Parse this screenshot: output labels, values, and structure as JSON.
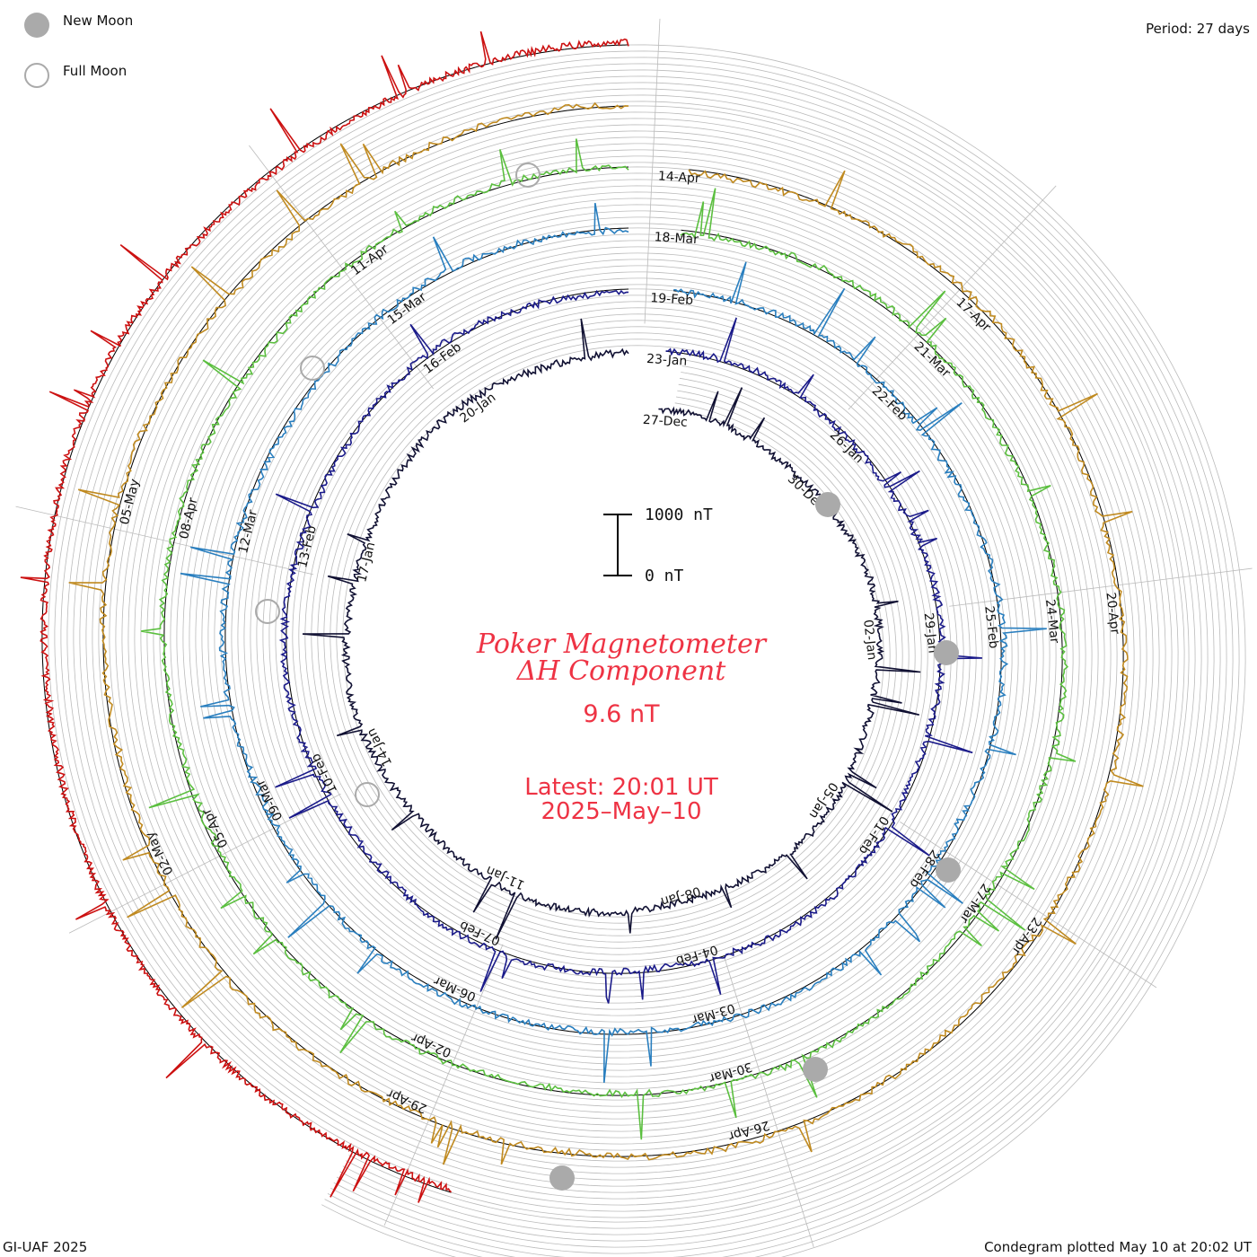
{
  "legend": {
    "new_moon": "New Moon",
    "full_moon": "Full Moon"
  },
  "period": "Period: 27 days",
  "footer": {
    "left": "GI-UAF 2025",
    "right": "Condegram plotted May 10 at 20:02 UT"
  },
  "scale_bar": {
    "top_label": "1000 nT",
    "bottom_label": "0 nT"
  },
  "center": {
    "title_line1": "Poker Magnetometer",
    "title_line2": "ΔH Component",
    "value": "9.6 nT",
    "latest": "Latest: 20:01 UT",
    "date": "2025–May–10"
  },
  "colors": {
    "title": "#ee3344",
    "grid": "#bbbbbb",
    "moon": "#aaaaaa"
  },
  "chart_data": {
    "type": "condegram spiral (line)",
    "period_days": 27,
    "turns": [
      {
        "color": "#111133",
        "labels": [
          "27-Dec",
          "30-Dec",
          "02-Jan",
          "05-Jan",
          "08-Jan",
          "11-Jan",
          "14-Jan",
          "17-Jan",
          "20-Jan"
        ]
      },
      {
        "color": "#1b1b8a",
        "labels": [
          "23-Jan",
          "26-Jan",
          "29-Jan",
          "01-Feb",
          "04-Feb",
          "07-Feb",
          "10-Feb",
          "13-Feb",
          "16-Feb"
        ]
      },
      {
        "color": "#2a7fbf",
        "labels": [
          "19-Feb",
          "22-Feb",
          "25-Feb",
          "28-Feb",
          "03-Mar",
          "06-Mar",
          "09-Mar",
          "12-Mar",
          "15-Mar"
        ]
      },
      {
        "color": "#5bbf3f",
        "labels": [
          "18-Mar",
          "21-Mar",
          "24-Mar",
          "27-Mar",
          "30-Mar",
          "02-Apr",
          "05-Apr",
          "08-Apr",
          "11-Apr"
        ]
      },
      {
        "color": "#c08a20",
        "labels": [
          "14-Apr",
          "17-Apr",
          "20-Apr",
          "23-Apr",
          "26-Apr",
          "29-Apr",
          "02-May",
          "05-May"
        ]
      },
      {
        "color": "#cc1111",
        "labels": []
      }
    ],
    "new_moons": [
      "29-Dec",
      "28-Jan",
      "28-Feb",
      "29-Mar",
      "27-Apr"
    ],
    "full_moons": [
      "13-Jan",
      "12-Feb",
      "14-Mar",
      "13-Apr"
    ],
    "y_unit": "nT",
    "scale_range": [
      0,
      1000
    ]
  }
}
